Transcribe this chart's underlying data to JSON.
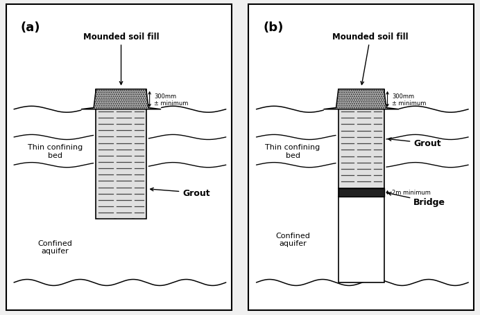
{
  "fig_width": 6.92,
  "fig_height": 4.56,
  "background_color": "#f5f5f5",
  "panel_a": {
    "label": "(a)",
    "mound_soil_fill": "Mounded soil fill",
    "thin_confining_bed": "Thin confining\nbed",
    "confined_aquifer": "Confined\naquifer",
    "grout_label": "Grout",
    "dim_label": "300mm\n± minimum"
  },
  "panel_b": {
    "label": "(b)",
    "mound_soil_fill": "Mounded soil fill",
    "thin_confining_bed": "Thin confining\nbed",
    "confined_aquifer": "Confined\naquifer",
    "grout_label": "Grout",
    "bridge_label": "Bridge",
    "dim_label_top": "300mm\n± minimum",
    "dim_label_mid": "2m minimum"
  }
}
